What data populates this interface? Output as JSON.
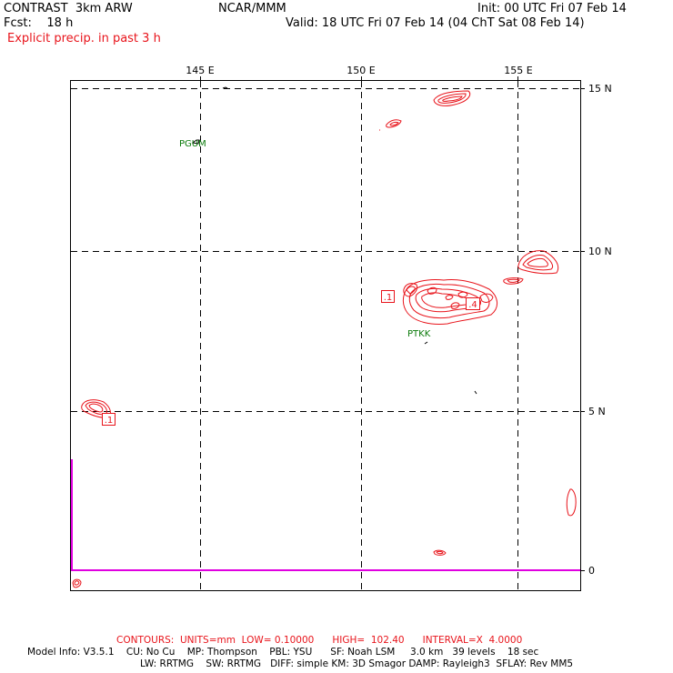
{
  "header": {
    "model": "CONTRAST  3km ARW",
    "org": "NCAR/MMM",
    "init": "Init: 00 UTC Fri 07 Feb 14",
    "fcst": "Fcst:    18 h",
    "valid": "Valid: 18 UTC Fri 07 Feb 14 (04 ChT Sat 08 Feb 14)",
    "field": "Explicit precip. in past 3 h"
  },
  "axes": {
    "lon_labels": [
      "145 E",
      "150 E",
      "155 E"
    ],
    "lat_labels": [
      "15 N",
      "10 N",
      "5 N",
      "0"
    ]
  },
  "stations": [
    {
      "id": "PGUM"
    },
    {
      "id": "PTKK"
    }
  ],
  "contour_labels": [
    {
      "text": ".1"
    },
    {
      "text": ".1"
    },
    {
      "text": ".4"
    }
  ],
  "footer": {
    "contours": "CONTOURS:  UNITS=mm  LOW= 0.10000      HIGH=  102.40      INTERVAL=X  4.0000",
    "model_info_1": "Model Info: V3.5.1    CU: No Cu    MP: Thompson    PBL: YSU      SF: Noah LSM     3.0 km   39 levels    18 sec",
    "model_info_2": "LW: RRTMG    SW: RRTMG   DIFF: simple KM: 3D Smagor DAMP: Rayleigh3  SFLAY: Rev MM5"
  },
  "colors": {
    "precip_contour": "#e8141b",
    "station": "#0a7a0a",
    "boundary": "#e000e0",
    "grid": "#000000"
  }
}
